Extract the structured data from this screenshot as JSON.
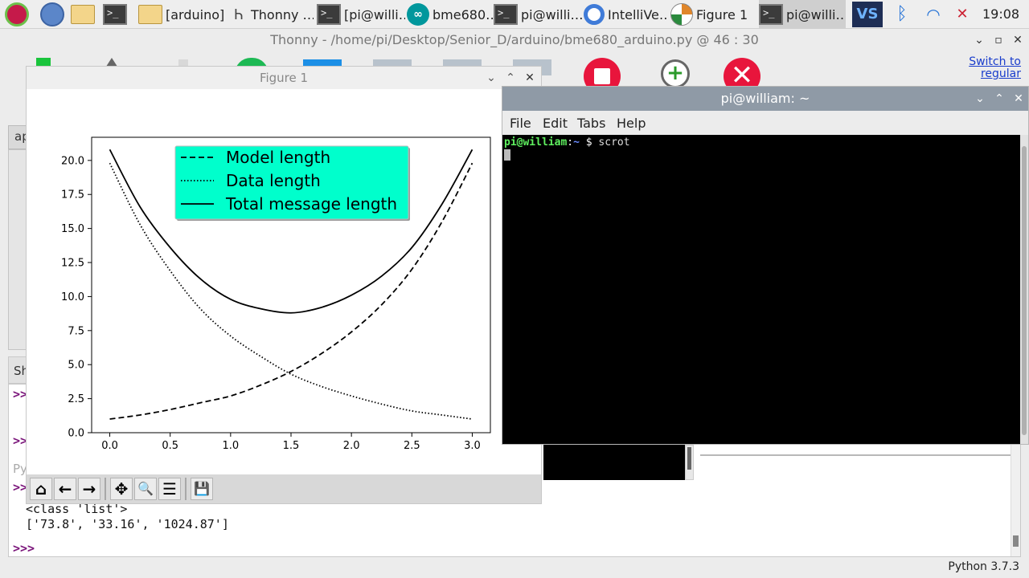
{
  "taskbar": {
    "buttons": [
      {
        "label": "",
        "icon": "raspberry-pi-menu-icon"
      },
      {
        "label": "",
        "icon": "web-browser-icon"
      },
      {
        "label": "",
        "icon": "file-manager-icon"
      },
      {
        "label": ">_",
        "icon": "terminal-icon"
      },
      {
        "label": "[arduino]",
        "icon": "folder-icon"
      },
      {
        "label": "Thonny  …",
        "icon": "thonny-icon"
      },
      {
        "label": "[pi@willi…",
        "icon": "terminal-icon"
      },
      {
        "label": "bme680…",
        "icon": "arduino-icon"
      },
      {
        "label": "pi@willi…",
        "icon": "terminal-icon"
      },
      {
        "label": "IntelliVe…",
        "icon": "chromium-icon"
      },
      {
        "label": "Figure 1",
        "icon": "matplotlib-icon"
      },
      {
        "label": "pi@willi…",
        "icon": "terminal-icon"
      }
    ],
    "vscode_label": "VS",
    "bluetooth_glyph": "ᛒ",
    "wifi_glyph": "◠",
    "volume_glyph": "✕",
    "clock": "19:08"
  },
  "thonny": {
    "title": "Thonny  -  /home/pi/Desktop/Senior_D/arduino/bme680_arduino.py  @  46 : 30",
    "switch_link": "Switch to regular",
    "side_tab": "ap",
    "shell_tab": "Sh",
    "shell": {
      "prompts": [
        ">>",
        ">>",
        ">>>"
      ],
      "gray_text": "Py",
      "prompt3": ">>",
      "lines": [
        "<class 'list'>",
        "['73.8', '33.16', '1024.87']"
      ]
    },
    "status": "Python 3.7.3"
  },
  "figure": {
    "title": "Figure 1",
    "controls": {
      "minimize": "⌄",
      "maximize": "⌃",
      "close": "✕"
    },
    "toolbar": [
      {
        "name": "home-button",
        "glyph": "⌂"
      },
      {
        "name": "back-button",
        "glyph": "←"
      },
      {
        "name": "forward-button",
        "glyph": "→"
      },
      {
        "name": "pan-button",
        "glyph": "✥"
      },
      {
        "name": "zoom-button",
        "glyph": "🔍"
      },
      {
        "name": "configure-subplots-button",
        "glyph": "☰"
      },
      {
        "name": "save-button",
        "glyph": "💾"
      }
    ]
  },
  "chart_data": {
    "type": "line",
    "title": "",
    "xlabel": "",
    "ylabel": "",
    "xlim": [
      -0.15,
      3.15
    ],
    "ylim": [
      0,
      21.7
    ],
    "xticks": [
      "0.0",
      "0.5",
      "1.0",
      "1.5",
      "2.0",
      "2.5",
      "3.0"
    ],
    "yticks": [
      "0.0",
      "2.5",
      "5.0",
      "7.5",
      "10.0",
      "12.5",
      "15.0",
      "17.5",
      "20.0"
    ],
    "legend": {
      "placement": "upper center",
      "background": "#00ffcc"
    },
    "x": [
      0.0,
      0.25,
      0.5,
      0.75,
      1.0,
      1.25,
      1.5,
      1.75,
      2.0,
      2.25,
      2.5,
      2.75,
      3.0
    ],
    "series": [
      {
        "name": "Model length",
        "style": "dashed",
        "values": [
          1.0,
          1.3,
          1.7,
          2.2,
          2.7,
          3.5,
          4.5,
          5.8,
          7.4,
          9.4,
          12.0,
          15.5,
          19.8
        ]
      },
      {
        "name": "Data length",
        "style": "dotted",
        "values": [
          19.8,
          15.3,
          11.9,
          9.1,
          7.1,
          5.6,
          4.3,
          3.4,
          2.7,
          2.1,
          1.6,
          1.3,
          1.0
        ]
      },
      {
        "name": "Total message length",
        "style": "solid",
        "values": [
          20.8,
          16.6,
          13.6,
          11.3,
          9.8,
          9.1,
          8.8,
          9.2,
          10.1,
          11.5,
          13.6,
          16.8,
          20.8
        ]
      }
    ]
  },
  "terminal": {
    "title": "pi@william: ~",
    "menu": [
      "File",
      "Edit",
      "Tabs",
      "Help"
    ],
    "prompt_user": "pi@william",
    "prompt_sep": ":",
    "prompt_path": "~",
    "prompt_dollar": "$",
    "command": "scrot"
  }
}
